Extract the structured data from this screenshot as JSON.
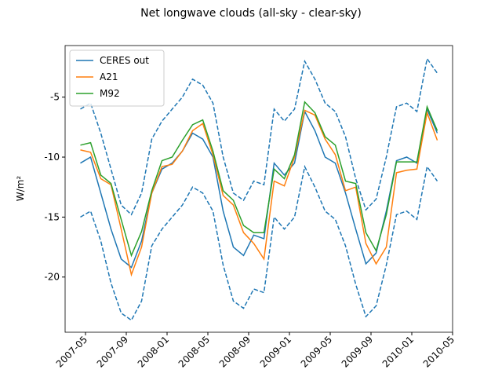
{
  "chart_data": {
    "type": "line",
    "title": "Net longwave clouds (all-sky - clear-sky)",
    "y_label": "W/m²",
    "x": [
      "2007-04",
      "2007-05",
      "2007-06",
      "2007-07",
      "2007-08",
      "2007-09",
      "2007-10",
      "2007-11",
      "2007-12",
      "2008-01",
      "2008-02",
      "2008-03",
      "2008-04",
      "2008-05",
      "2008-06",
      "2008-07",
      "2008-08",
      "2008-09",
      "2008-10",
      "2008-11",
      "2008-12",
      "2009-01",
      "2009-02",
      "2009-03",
      "2009-04",
      "2009-05",
      "2009-06",
      "2009-07",
      "2009-08",
      "2009-09",
      "2009-10",
      "2009-11",
      "2009-12",
      "2010-01",
      "2010-02",
      "2010-03"
    ],
    "series": [
      {
        "name": "CERES out",
        "color": "#1f77b4",
        "values": [
          -10.5,
          -10,
          -13,
          -16,
          -18.5,
          -19.2,
          -17,
          -13,
          -11,
          -10.5,
          -9.5,
          -8,
          -8.5,
          -10,
          -14.5,
          -17.5,
          -18.2,
          -16.5,
          -16.8,
          -10.5,
          -11.5,
          -10.5,
          -6.2,
          -7.8,
          -10,
          -10.5,
          -13,
          -16,
          -18.9,
          -18,
          -14.5,
          -10.3,
          -10,
          -10.5,
          -6,
          -8
        ]
      },
      {
        "name": "A21",
        "color": "#ff7f0e",
        "values": [
          -9.4,
          -9.6,
          -11.8,
          -12.3,
          -16,
          -19.8,
          -17.5,
          -13,
          -10.8,
          -10.6,
          -9.5,
          -7.8,
          -7.2,
          -9.8,
          -13.2,
          -14,
          -16.3,
          -17.2,
          -18.5,
          -12,
          -12.4,
          -10,
          -6.1,
          -6.5,
          -8.5,
          -9.8,
          -12.8,
          -12.5,
          -17.2,
          -18.9,
          -17.5,
          -11.3,
          -11.1,
          -11,
          -6.3,
          -8.6
        ]
      },
      {
        "name": "M92",
        "color": "#2ca02c",
        "values": [
          -9,
          -8.8,
          -11.5,
          -12.2,
          -15.2,
          -18.2,
          -16.2,
          -12.8,
          -10.3,
          -10,
          -8.6,
          -7.3,
          -6.9,
          -9.5,
          -12.8,
          -13.6,
          -15.7,
          -16.3,
          -16.3,
          -11,
          -11.8,
          -9.8,
          -5.4,
          -6.3,
          -8.3,
          -9,
          -12,
          -12.2,
          -16.3,
          -17.8,
          -14.8,
          -10.4,
          -10.4,
          -10.4,
          -5.8,
          -7.8
        ]
      },
      {
        "color": "#1f77b4",
        "dashed": true,
        "values": [
          -6,
          -5.5,
          -8,
          -11,
          -14,
          -14.8,
          -13,
          -8.5,
          -7,
          -6,
          -5,
          -3.5,
          -4,
          -5.5,
          -10,
          -13,
          -13.6,
          -12,
          -12.3,
          -6,
          -7,
          -6,
          -2,
          -3.5,
          -5.5,
          -6.2,
          -8.3,
          -11.8,
          -14.4,
          -13.5,
          -10,
          -5.8,
          -5.5,
          -6.2,
          -1.8,
          -3
        ]
      },
      {
        "color": "#1f77b4",
        "dashed": true,
        "values": [
          -15,
          -14.5,
          -17,
          -20.5,
          -23,
          -23.6,
          -22,
          -17.4,
          -16,
          -15,
          -14,
          -12.5,
          -13,
          -14.5,
          -19,
          -22,
          -22.6,
          -21,
          -21.3,
          -15,
          -16,
          -15,
          -10.8,
          -12.5,
          -14.5,
          -15.2,
          -17.4,
          -20.6,
          -23.3,
          -22.4,
          -19,
          -14.8,
          -14.5,
          -15.2,
          -10.8,
          -12
        ]
      }
    ],
    "xlim": [
      "2007-03",
      "2010-05"
    ],
    "xticks": [
      "2007-05",
      "2007-09",
      "2008-01",
      "2008-05",
      "2008-09",
      "2009-01",
      "2009-05",
      "2009-09",
      "2010-01",
      "2010-05"
    ],
    "ylim": [
      -24.6,
      -0.7
    ],
    "yticks": [
      -20,
      -15,
      -10,
      -5
    ],
    "legend": "upper left"
  }
}
